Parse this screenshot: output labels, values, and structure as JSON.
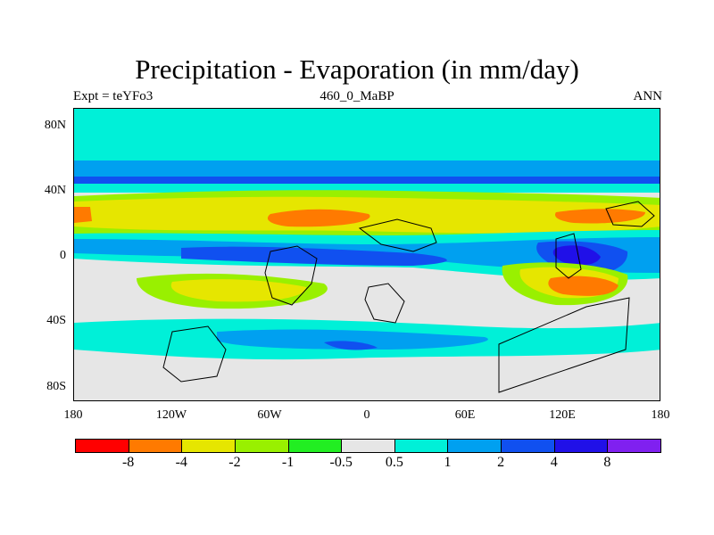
{
  "title": "Precipitation - Evaporation (in mm/day)",
  "subtitle_left": "Expt = teYFo3",
  "subtitle_center": "460_0_MaBP",
  "subtitle_right": "ANN",
  "y_axis_labels": [
    "80N",
    "40N",
    "0",
    "40S",
    "80S"
  ],
  "x_axis_labels": [
    "180",
    "120W",
    "60W",
    "0",
    "60E",
    "120E",
    "180"
  ],
  "colorbar": {
    "labels": [
      "-8",
      "-4",
      "-2",
      "-1",
      "-0.5",
      "0.5",
      "1",
      "2",
      "4",
      "8"
    ],
    "colors": [
      "#ff0000",
      "#ff7a00",
      "#e6e600",
      "#99f000",
      "#22ee22",
      "#e6e6e6",
      "#00f0d8",
      "#00a0f0",
      "#1050f0",
      "#2010e8",
      "#8020f0"
    ]
  }
}
